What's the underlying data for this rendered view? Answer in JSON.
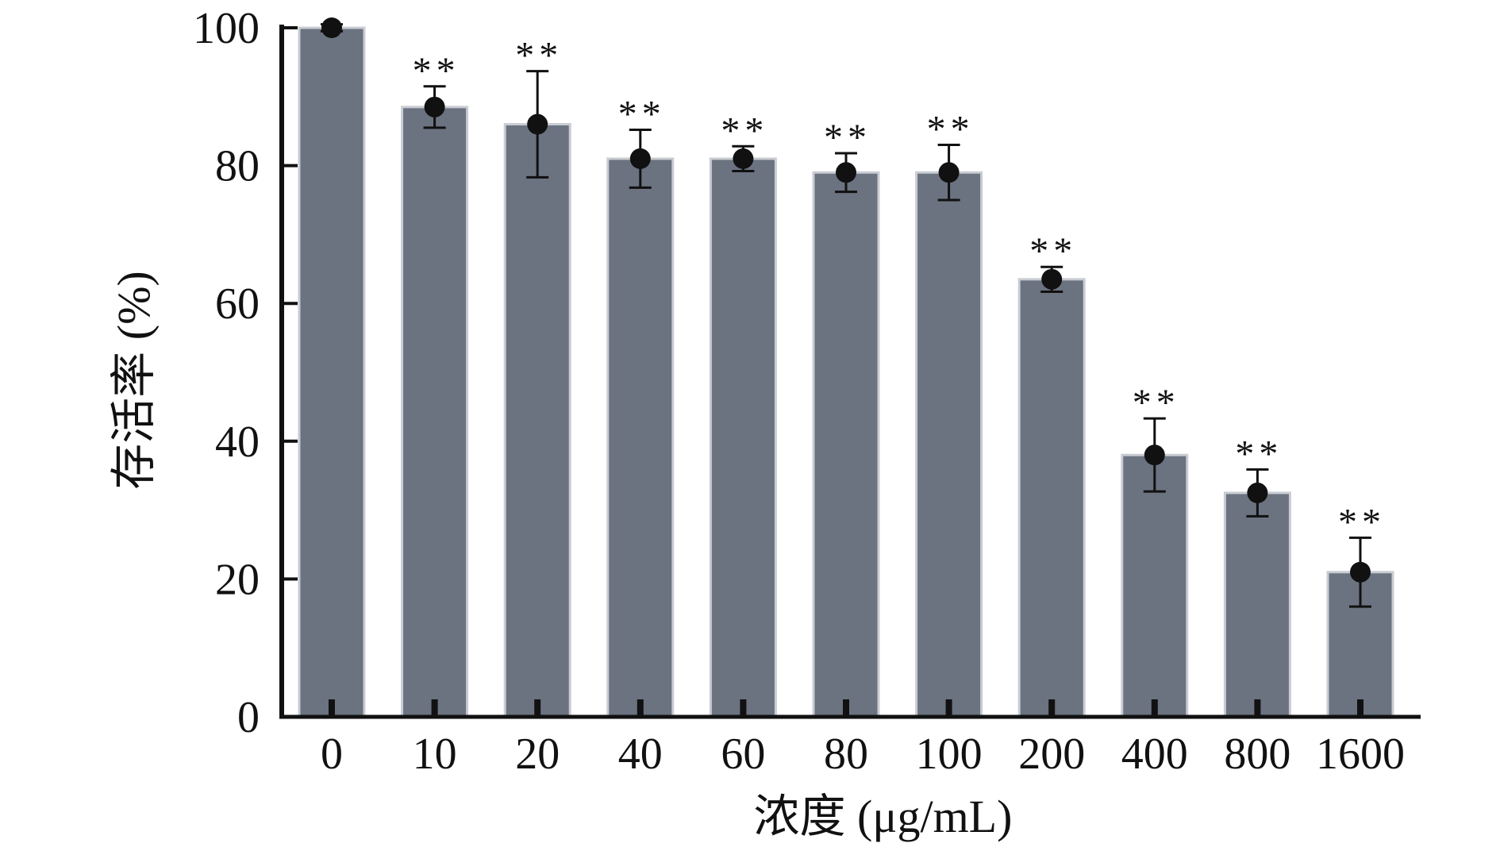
{
  "chart_data": {
    "type": "bar",
    "title": "",
    "xlabel": "浓度 (μg/mL)",
    "ylabel": "存活率 (%)",
    "ylim": [
      0,
      100
    ],
    "yticks": [
      "0",
      "20",
      "40",
      "60",
      "80",
      "100"
    ],
    "categories": [
      "0",
      "10",
      "20",
      "40",
      "60",
      "80",
      "100",
      "200",
      "400",
      "800",
      "1600"
    ],
    "values": [
      100,
      88.5,
      86,
      81,
      81,
      79,
      79,
      63.5,
      38,
      32.5,
      21
    ],
    "errors": [
      0.5,
      3,
      7.7,
      4.2,
      1.8,
      2.8,
      4,
      1.8,
      5.3,
      3.4,
      5
    ],
    "significance": [
      "",
      "**",
      "**",
      "**",
      "**",
      "**",
      "**",
      "**",
      "**",
      "**",
      "**"
    ],
    "grid": false,
    "legend": "none",
    "colors": {
      "bar": "#6b7280",
      "bar_edge": "#c9ccd2",
      "axis": "#111111",
      "point": "#111111"
    }
  }
}
